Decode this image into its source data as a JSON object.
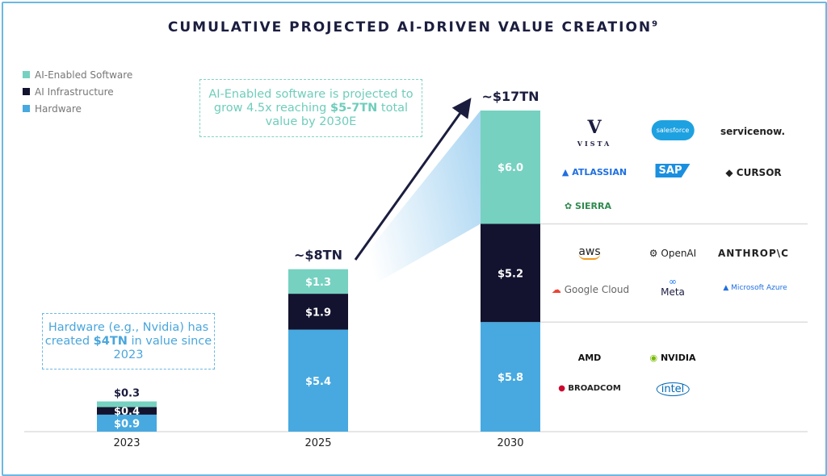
{
  "chart_data": {
    "type": "bar",
    "stacked": true,
    "title": "CUMULATIVE PROJECTED AI-DRIVEN VALUE CREATION",
    "title_footnote": "9",
    "categories": [
      "2023",
      "2025",
      "2030"
    ],
    "series": [
      {
        "name": "Hardware",
        "values": [
          0.9,
          5.4,
          5.8
        ],
        "labels": [
          "$0.9",
          "$5.4",
          "$5.8"
        ],
        "color": "#47a9e0"
      },
      {
        "name": "AI Infrastructure",
        "values": [
          0.4,
          1.9,
          5.2
        ],
        "labels": [
          "$0.4",
          "$1.9",
          "$5.2"
        ],
        "color": "#13132f"
      },
      {
        "name": "AI-Enabled Software",
        "values": [
          0.3,
          1.3,
          6.0
        ],
        "labels": [
          "$0.3",
          "$1.3",
          "$6.0"
        ],
        "color": "#76d1c0"
      }
    ],
    "totals": [
      "",
      "~$8TN",
      "~$17TN"
    ],
    "legend_order": [
      "AI-Enabled Software",
      "AI Infrastructure",
      "Hardware"
    ],
    "legend_placement": "top-left",
    "grid": false,
    "unit": "$TN",
    "ylim": [
      0,
      17
    ]
  },
  "callouts": {
    "software": {
      "pre": "AI-Enabled software is projected to grow 4.5x reaching ",
      "bold": "$5-7TN",
      "post": " total value by 2030E"
    },
    "hardware": {
      "pre": "Hardware (e.g., Nvidia) has created ",
      "bold": "$4TN",
      "post": " in value since 2023"
    }
  },
  "logos": {
    "software": [
      "VISTA",
      "salesforce",
      "servicenow.",
      "ATLASSIAN",
      "SAP",
      "CURSOR",
      "SIERRA"
    ],
    "infrastructure": [
      "aws",
      "OpenAI",
      "ANTHROP\\C",
      "Google Cloud",
      "Meta",
      "Microsoft Azure"
    ],
    "hardware": [
      "AMD",
      "NVIDIA",
      "BROADCOM",
      "intel"
    ]
  }
}
